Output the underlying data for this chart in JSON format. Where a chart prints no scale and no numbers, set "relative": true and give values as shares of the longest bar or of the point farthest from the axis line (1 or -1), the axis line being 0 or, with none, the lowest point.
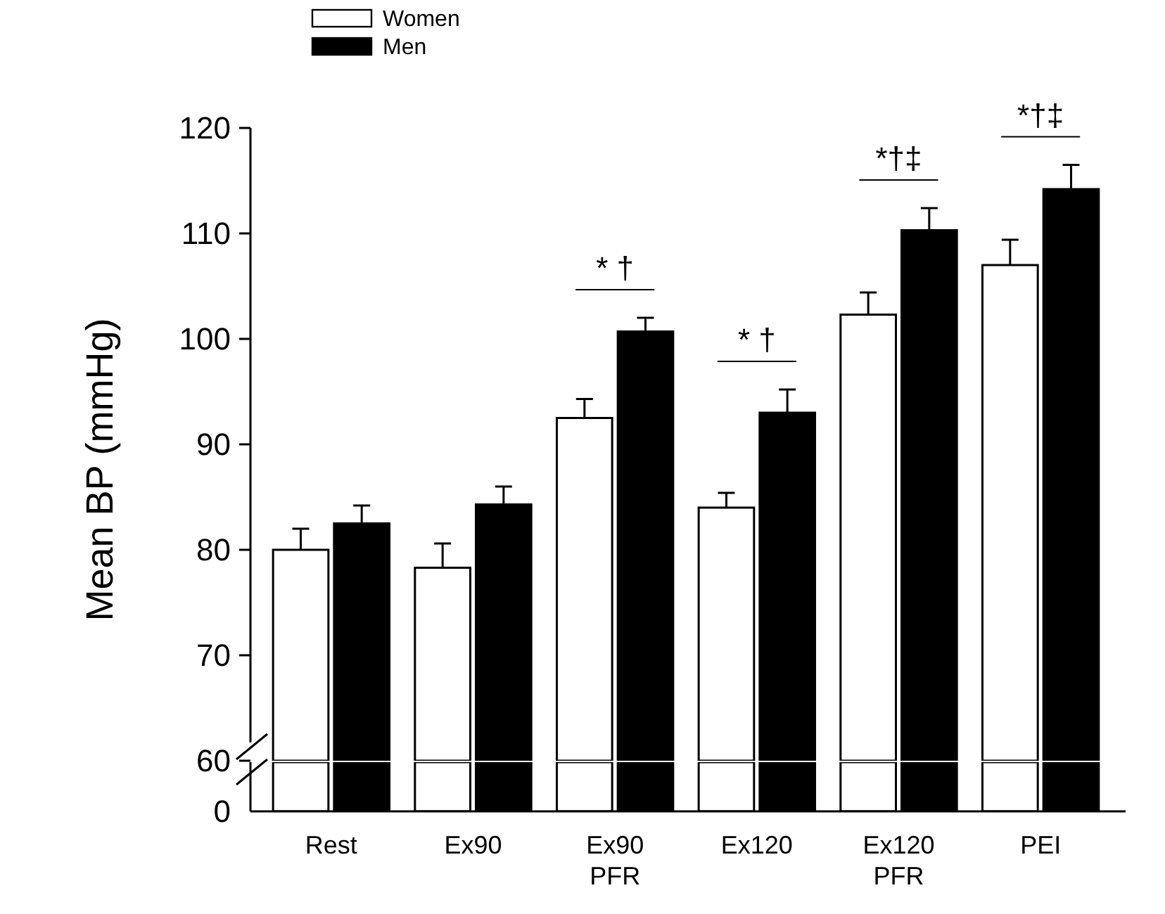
{
  "chart_data": [
    {
      "type": "bar",
      "ylabel": "Mean BP (mmHg)",
      "categories": [
        "Rest",
        "Ex90",
        "Ex90 PFR",
        "Ex120",
        "Ex120 PFR",
        "PEI"
      ],
      "series": [
        {
          "name": "Women",
          "color": "#ffffff",
          "values": [
            80,
            78.3,
            92.5,
            84,
            102.3,
            107
          ],
          "errors": [
            [
              80,
              82
            ],
            [
              78.3,
              80.6
            ],
            [
              92.5,
              94.3
            ],
            [
              84,
              85.4
            ],
            [
              102.3,
              104.4
            ],
            [
              107,
              109.4
            ]
          ]
        },
        {
          "name": "Men",
          "color": "#000000",
          "values": [
            82.5,
            84.3,
            100.7,
            93,
            110.3,
            114.2
          ],
          "errors": [
            [
              82.5,
              84.2
            ],
            [
              84.3,
              86
            ],
            [
              100.7,
              102
            ],
            [
              93,
              95.2
            ],
            [
              110.3,
              112.4
            ],
            [
              114.2,
              116.5
            ]
          ]
        }
      ],
      "ylim": [
        60,
        120
      ],
      "yticks": [
        60,
        70,
        80,
        90,
        100,
        110,
        120
      ],
      "legend": "top left",
      "grid": false,
      "annotations": [
        "* †",
        "* †",
        "*†‡",
        "*†‡"
      ]
    },
    {
      "type": "bar",
      "relative": true,
      "categories": [
        null,
        null,
        null,
        null,
        null,
        null
      ],
      "series": [
        {
          "color": "#ffffff",
          "values": [
            1,
            1,
            1,
            1,
            1,
            1
          ]
        },
        {
          "color": "#000000",
          "values": [
            1,
            1,
            1,
            1,
            1,
            1
          ]
        }
      ],
      "annotations": [
        "0"
      ],
      "grid": false
    }
  ]
}
